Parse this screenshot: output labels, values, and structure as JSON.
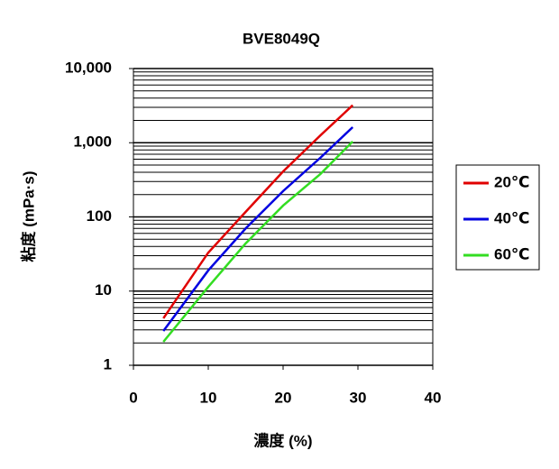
{
  "chart_data": {
    "type": "line",
    "title": "BVE8049Q",
    "x_label": "濃度 (%)",
    "y_label": "粘度 (mPa·s)",
    "xlim": [
      0,
      40
    ],
    "xticks": [
      0,
      10,
      20,
      30,
      40
    ],
    "ylim": [
      1,
      10000
    ],
    "yticks": [
      1,
      10,
      100,
      {
        "value": 1000,
        "label": "1,000"
      },
      {
        "value": 10000,
        "label": "10,000"
      }
    ],
    "log_y": true,
    "grid": true,
    "minor_grid": true,
    "legend": "right",
    "series": [
      {
        "name": "20℃",
        "color": "#e00000",
        "x": [
          4,
          10,
          15,
          20,
          25,
          29.3
        ],
        "values": [
          4.3,
          33,
          117,
          410,
          1260,
          3200
        ]
      },
      {
        "name": "40℃",
        "color": "#0000e0",
        "x": [
          4,
          10,
          15,
          20,
          25,
          29.3
        ],
        "values": [
          2.9,
          19,
          70,
          223,
          630,
          1620
        ]
      },
      {
        "name": "60℃",
        "color": "#33dd22",
        "x": [
          4,
          10,
          15,
          20,
          25,
          29.3
        ],
        "values": [
          2.07,
          11.4,
          44,
          142,
          380,
          1040
        ]
      }
    ]
  }
}
